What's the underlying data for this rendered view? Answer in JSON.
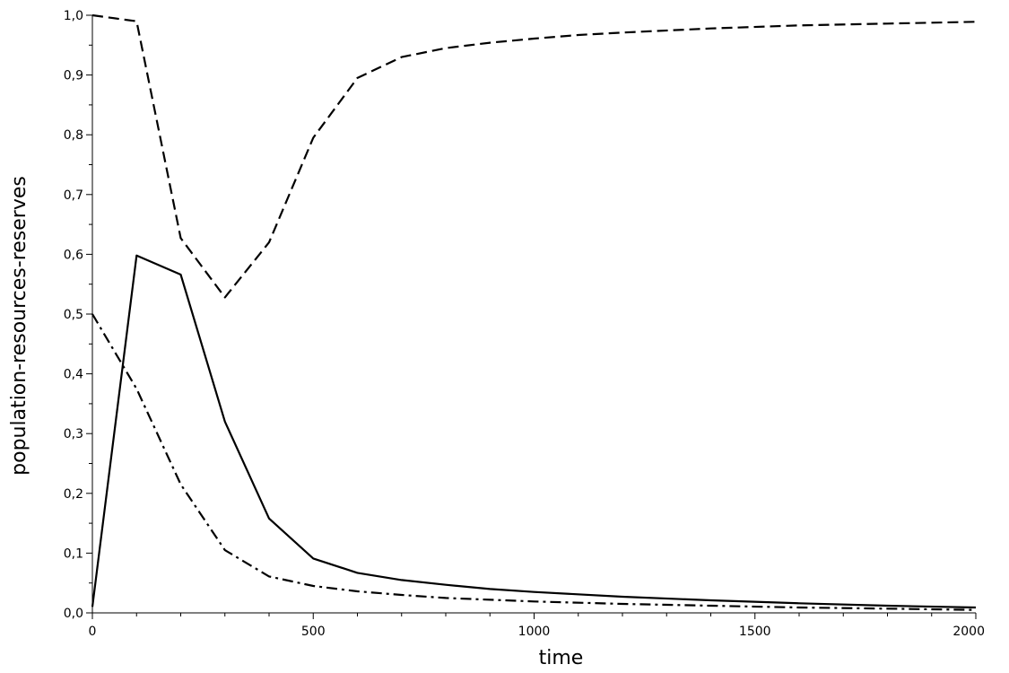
{
  "chart_data": {
    "type": "line",
    "title": "",
    "xlabel": "time",
    "ylabel": "population-resources-reserves",
    "xlim": [
      0,
      2000
    ],
    "ylim": [
      0,
      1.0
    ],
    "grid": false,
    "legend": "none",
    "x_major_ticks": [
      0,
      500,
      1000,
      1500,
      2000
    ],
    "x_tick_labels": [
      "0",
      "500",
      "1000",
      "1500",
      "2000"
    ],
    "y_major_ticks": [
      0,
      0.1,
      0.2,
      0.3,
      0.4,
      0.5,
      0.6,
      0.7,
      0.8,
      0.9,
      1.0
    ],
    "y_tick_labels": [
      "0,0",
      "0,1",
      "0,2",
      "0,3",
      "0,4",
      "0,5",
      "0,6",
      "0,7",
      "0,8",
      "0,9",
      "1,0"
    ],
    "series": [
      {
        "style": "solid",
        "color": "#000000",
        "x": [
          0,
          100,
          200,
          300,
          400,
          500,
          600,
          700,
          800,
          900,
          1000,
          1200,
          1400,
          1600,
          1800,
          2000
        ],
        "y": [
          0.01,
          0.598,
          0.566,
          0.32,
          0.158,
          0.091,
          0.067,
          0.055,
          0.047,
          0.04,
          0.035,
          0.027,
          0.021,
          0.016,
          0.012,
          0.009
        ]
      },
      {
        "style": "dashed",
        "color": "#000000",
        "x": [
          0,
          100,
          200,
          300,
          400,
          500,
          600,
          700,
          800,
          900,
          1000,
          1100,
          1200,
          1400,
          1600,
          1800,
          2000
        ],
        "y": [
          1.0,
          0.99,
          0.627,
          0.528,
          0.62,
          0.795,
          0.895,
          0.93,
          0.945,
          0.954,
          0.961,
          0.967,
          0.971,
          0.978,
          0.983,
          0.986,
          0.989
        ]
      },
      {
        "style": "dash-dot",
        "color": "#000000",
        "x": [
          0,
          100,
          200,
          300,
          400,
          500,
          600,
          700,
          800,
          1000,
          1200,
          1400,
          1600,
          1800,
          2000
        ],
        "y": [
          0.5,
          0.375,
          0.215,
          0.105,
          0.061,
          0.045,
          0.036,
          0.03,
          0.025,
          0.019,
          0.015,
          0.012,
          0.009,
          0.007,
          0.005
        ]
      }
    ]
  }
}
